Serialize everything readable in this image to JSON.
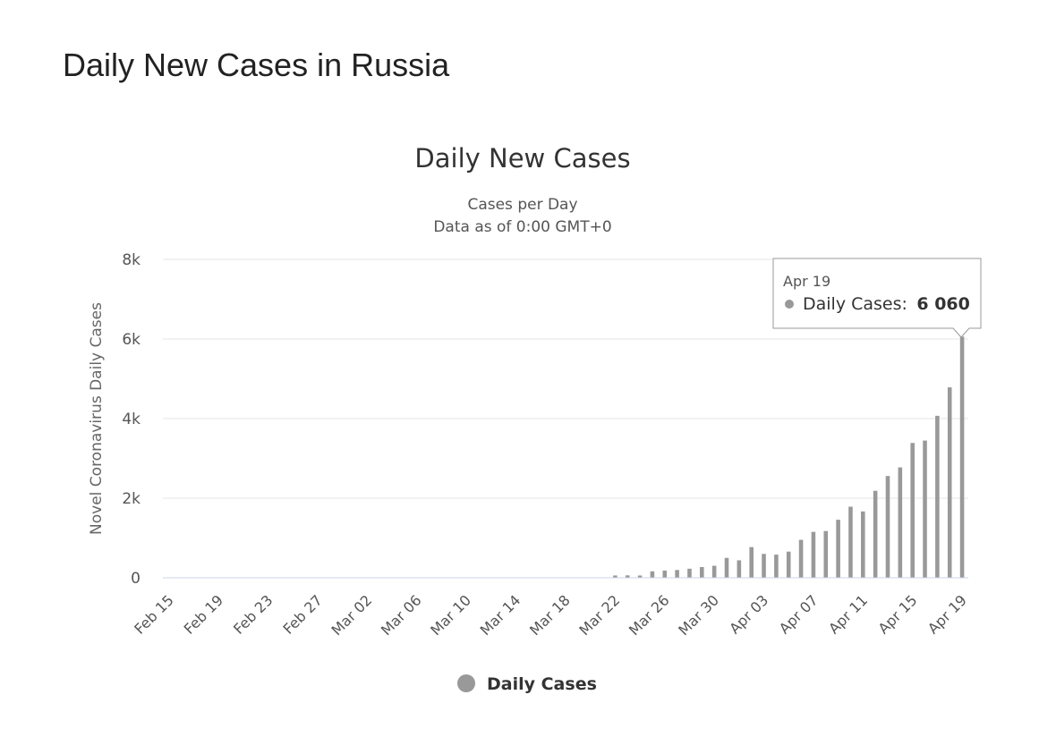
{
  "page": {
    "title": "Daily New Cases in Russia"
  },
  "chart_data": {
    "type": "bar",
    "title": "Daily New Cases",
    "subtitle_lines": [
      "Cases per Day",
      "Data as of 0:00 GMT+0"
    ],
    "ylabel": "Novel Coronavirus Daily Cases",
    "xlabel": "",
    "ylim": [
      0,
      8000
    ],
    "y_ticks": [
      0,
      2000,
      4000,
      6000,
      8000
    ],
    "y_tick_labels": [
      "0",
      "2k",
      "4k",
      "6k",
      "8k"
    ],
    "x_tick_labels": [
      "Feb 15",
      "Feb 19",
      "Feb 23",
      "Feb 27",
      "Mar 02",
      "Mar 06",
      "Mar 10",
      "Mar 14",
      "Mar 18",
      "Mar 22",
      "Mar 26",
      "Mar 30",
      "Apr 03",
      "Apr 07",
      "Apr 11",
      "Apr 15",
      "Apr 19"
    ],
    "grid": true,
    "legend_position": "bottom-center",
    "series": [
      {
        "name": "Daily Cases",
        "color": "#999999",
        "categories": [
          "Feb 15",
          "Feb 16",
          "Feb 17",
          "Feb 18",
          "Feb 19",
          "Feb 20",
          "Feb 21",
          "Feb 22",
          "Feb 23",
          "Feb 24",
          "Feb 25",
          "Feb 26",
          "Feb 27",
          "Feb 28",
          "Feb 29",
          "Mar 01",
          "Mar 02",
          "Mar 03",
          "Mar 04",
          "Mar 05",
          "Mar 06",
          "Mar 07",
          "Mar 08",
          "Mar 09",
          "Mar 10",
          "Mar 11",
          "Mar 12",
          "Mar 13",
          "Mar 14",
          "Mar 15",
          "Mar 16",
          "Mar 17",
          "Mar 18",
          "Mar 19",
          "Mar 20",
          "Mar 21",
          "Mar 22",
          "Mar 23",
          "Mar 24",
          "Mar 25",
          "Mar 26",
          "Mar 27",
          "Mar 28",
          "Mar 29",
          "Mar 30",
          "Mar 31",
          "Apr 01",
          "Apr 02",
          "Apr 03",
          "Apr 04",
          "Apr 05",
          "Apr 06",
          "Apr 07",
          "Apr 08",
          "Apr 09",
          "Apr 10",
          "Apr 11",
          "Apr 12",
          "Apr 13",
          "Apr 14",
          "Apr 15",
          "Apr 16",
          "Apr 17",
          "Apr 18",
          "Apr 19"
        ],
        "values": [
          0,
          0,
          0,
          0,
          0,
          0,
          0,
          0,
          0,
          0,
          0,
          0,
          0,
          0,
          0,
          0,
          1,
          0,
          0,
          0,
          0,
          0,
          0,
          0,
          0,
          0,
          0,
          0,
          0,
          0,
          0,
          0,
          0,
          0,
          0,
          0,
          58,
          61,
          57,
          163,
          182,
          196,
          228,
          270,
          302,
          500,
          440,
          771,
          601,
          582,
          658,
          954,
          1154,
          1175,
          1459,
          1786,
          1667,
          2186,
          2558,
          2774,
          3388,
          3448,
          4070,
          4785,
          6060
        ]
      }
    ],
    "tooltip": {
      "date": "Apr 19",
      "label": "Daily Cases:",
      "value": "6 060"
    }
  }
}
